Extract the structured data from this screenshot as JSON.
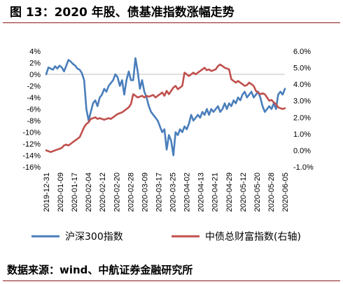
{
  "header": {
    "title": "图 13：2020 年股、债基准指数涨幅走势"
  },
  "footer": {
    "source": "数据来源：wind、中航证券金融研究所"
  },
  "chart_data": {
    "type": "line",
    "title": "图 13：2020 年股、债基准指数涨幅走势",
    "x_tick_labels": [
      "2019-12-31",
      "2020-01-09",
      "2020-01-17",
      "2020-02-04",
      "2020-02-12",
      "2020-02-20",
      "2020-02-28",
      "2020-03-09",
      "2020-03-17",
      "2020-03-25",
      "2020-04-02",
      "2020-04-13",
      "2020-04-21",
      "2020-04-29",
      "2020-05-12",
      "2020-05-20",
      "2020-05-28",
      "2020-06-05"
    ],
    "y_left": {
      "ticks": [
        "4%",
        "2%",
        "0%",
        "-2%",
        "-4%",
        "-6%",
        "-8%",
        "-10%",
        "-12%",
        "-14%",
        "-16%"
      ],
      "ylim": [
        -16,
        4
      ]
    },
    "y_right": {
      "ticks": [
        "6.0%",
        "5.0%",
        "4.0%",
        "3.0%",
        "2.0%",
        "1.0%",
        "0.0%",
        "-1.0%"
      ],
      "ylim": [
        -1,
        6
      ]
    },
    "legend_position": "bottom",
    "series": [
      {
        "name": "沪深300指数",
        "color": "#4a7ebb",
        "axis": "left",
        "values": [
          0.0,
          1.2,
          1.0,
          0.8,
          1.4,
          1.0,
          1.5,
          1.2,
          0.5,
          1.5,
          2.5,
          2.2,
          1.8,
          1.5,
          1.0,
          0.8,
          0.2,
          -1.0,
          -6.0,
          -8.0,
          -6.5,
          -5.0,
          -4.5,
          -5.5,
          -4.0,
          -3.5,
          -2.5,
          -3.0,
          -2.0,
          -1.5,
          -1.0,
          0.0,
          -0.5,
          -2.0,
          -1.0,
          -3.5,
          -1.0,
          0.5,
          -1.0,
          -1.0,
          2.8,
          0.5,
          -2.5,
          -1.0,
          -3.0,
          -4.0,
          -5.5,
          -6.5,
          -7.0,
          -7.5,
          -8.0,
          -9.0,
          -10.0,
          -9.5,
          -13.0,
          -10.5,
          -11.5,
          -14.0,
          -10.0,
          -10.5,
          -9.5,
          -10.0,
          -9.0,
          -9.5,
          -8.5,
          -7.0,
          -8.0,
          -7.5,
          -7.0,
          -7.5,
          -6.5,
          -7.0,
          -6.0,
          -7.0,
          -6.0,
          -6.5,
          -6.0,
          -5.5,
          -6.5,
          -6.0,
          -5.0,
          -6.0,
          -5.0,
          -5.5,
          -4.5,
          -5.0,
          -4.0,
          -4.5,
          -3.5,
          -3.0,
          -4.0,
          -3.5,
          -3.0,
          -4.0,
          -3.5,
          -3.0,
          -4.0,
          -5.5,
          -6.5,
          -6.0,
          -5.5,
          -6.0,
          -5.0,
          -6.0,
          -3.5,
          -3.0,
          -3.5,
          -2.5
        ]
      },
      {
        "name": "中债总财富指数(右轴)",
        "color": "#c0504d",
        "axis": "right",
        "values": [
          0.0,
          -0.05,
          -0.1,
          -0.05,
          0.0,
          0.05,
          0.1,
          0.15,
          0.3,
          0.35,
          0.3,
          0.4,
          0.5,
          0.6,
          0.7,
          0.8,
          1.1,
          1.4,
          1.6,
          1.7,
          1.9,
          1.95,
          2.0,
          1.9,
          1.95,
          1.9,
          1.85,
          1.9,
          1.95,
          1.9,
          2.0,
          2.1,
          2.2,
          2.25,
          2.3,
          2.4,
          2.5,
          2.6,
          2.8,
          3.4,
          3.3,
          3.2,
          3.25,
          3.3,
          3.2,
          3.3,
          3.25,
          3.3,
          3.35,
          3.2,
          3.3,
          3.4,
          3.5,
          3.3,
          3.6,
          3.4,
          3.6,
          3.8,
          3.9,
          3.7,
          3.8,
          3.9,
          4.7,
          4.6,
          4.5,
          4.6,
          4.7,
          4.6,
          4.7,
          4.8,
          4.9,
          5.0,
          4.85,
          4.9,
          4.8,
          4.85,
          4.9,
          5.1,
          5.2,
          5.1,
          5.0,
          4.95,
          4.9,
          4.3,
          4.2,
          4.1,
          4.2,
          4.1,
          4.0,
          3.9,
          3.95,
          4.1,
          4.0,
          3.9,
          3.6,
          3.5,
          3.4,
          3.45,
          3.4,
          3.2,
          3.0,
          3.05,
          2.9,
          2.8,
          2.6,
          2.55,
          2.5,
          2.55
        ]
      }
    ]
  }
}
